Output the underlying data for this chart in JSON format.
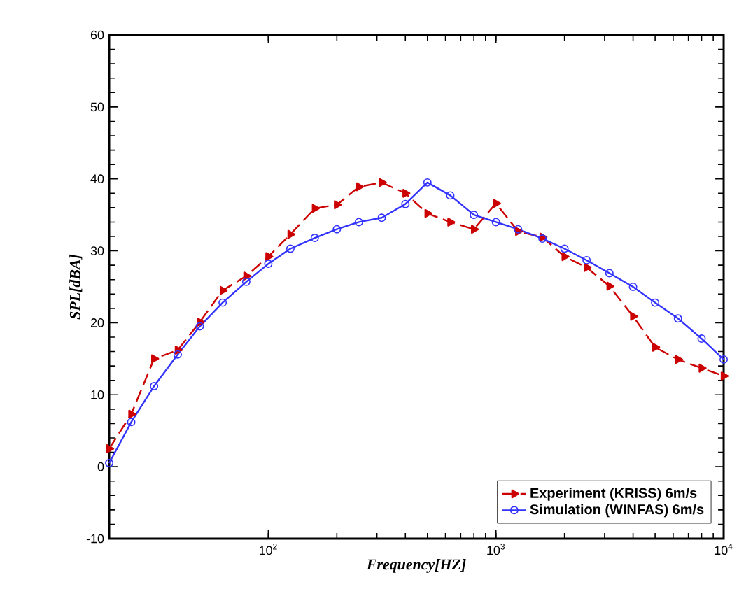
{
  "chart_data": {
    "type": "line",
    "xlabel": "Frequency[HZ]",
    "ylabel": "SPL[dBA]",
    "log": "x",
    "x": [
      20,
      25,
      31.5,
      40,
      50,
      63,
      80,
      100,
      125,
      160,
      200,
      250,
      315,
      400,
      500,
      630,
      800,
      1000,
      1250,
      1600,
      2000,
      2500,
      3150,
      4000,
      5000,
      6300,
      8000,
      10000
    ],
    "xlim": [
      20,
      10000
    ],
    "xticks": [
      {
        "value": 100,
        "label": "10$^{2}$"
      },
      {
        "value": 1000,
        "label": "10$^{3}$"
      },
      {
        "value": 10000,
        "label": "10$^{4}$"
      }
    ],
    "ylim": [
      -10,
      60
    ],
    "yticks": [
      -10,
      0,
      10,
      20,
      30,
      40,
      50,
      60
    ],
    "legend": "bottom right",
    "grid": false,
    "series": [
      {
        "name": "Experiment (KRISS) 6m/s",
        "color": "#cc0000",
        "marker": "triangle",
        "line_style": "dashed",
        "values": [
          2.5,
          7.3,
          15,
          16.2,
          20.1,
          24.5,
          26.5,
          29.2,
          32.3,
          35.9,
          36.4,
          38.9,
          39.5,
          38,
          35.2,
          34,
          33,
          36.6,
          32.7,
          31.9,
          29.2,
          27.7,
          25.1,
          20.9,
          16.6,
          14.9,
          13.7,
          12.6
        ]
      },
      {
        "name": "Simulation (WINFAS) 6m/s",
        "color": "#3333ff",
        "marker": "circle",
        "line_style": "solid",
        "values": [
          0.5,
          6.2,
          11.2,
          15.6,
          19.5,
          22.8,
          25.7,
          28.2,
          30.3,
          31.8,
          33,
          34,
          34.6,
          36.5,
          39.5,
          37.7,
          35,
          34,
          33,
          31.7,
          30.3,
          28.7,
          26.9,
          25,
          22.8,
          20.6,
          17.8,
          14.9
        ]
      }
    ]
  }
}
